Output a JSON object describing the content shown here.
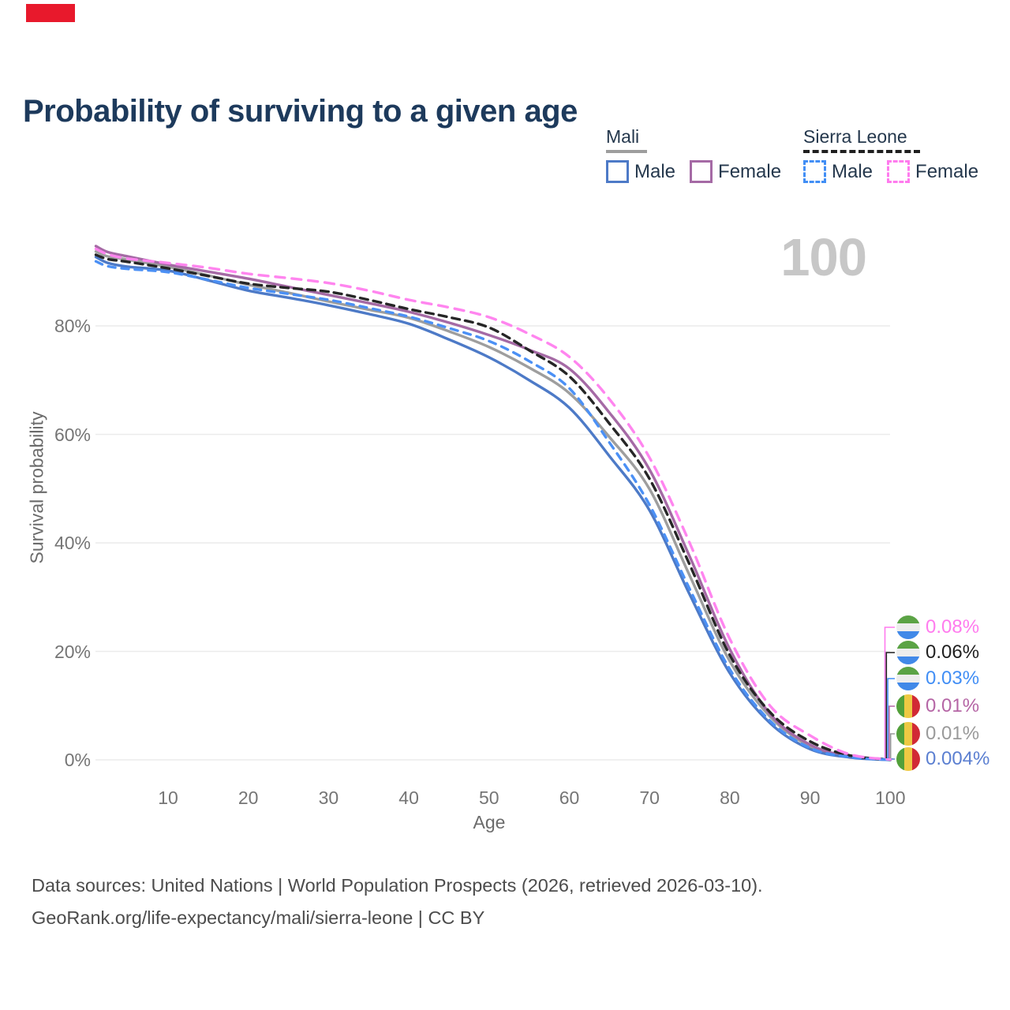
{
  "page": {
    "indicator_color": "#e8192c",
    "watermark": "100"
  },
  "title": "Probability of surviving to a given age",
  "legend": {
    "groups": [
      {
        "label": "Mali",
        "line_style": "solid",
        "line_color": "#9e9e9e",
        "items": [
          {
            "label": "Male",
            "color": "#4d7ac7",
            "dashed": false
          },
          {
            "label": "Female",
            "color": "#a56aa5",
            "dashed": false
          }
        ]
      },
      {
        "label": "Sierra Leone",
        "line_style": "dashed",
        "line_color": "#1f1f1f",
        "items": [
          {
            "label": "Male",
            "color": "#418ef5",
            "dashed": true
          },
          {
            "label": "Female",
            "color": "#ff7bee",
            "dashed": true
          }
        ]
      }
    ]
  },
  "chart_data": {
    "type": "line",
    "title": "Probability of surviving to a given age",
    "xlabel": "Age",
    "ylabel": "Survival probability",
    "x_ticks": [
      10,
      20,
      30,
      40,
      50,
      60,
      70,
      80,
      90,
      100
    ],
    "y_ticks": [
      "0%",
      "20%",
      "40%",
      "60%",
      "80%"
    ],
    "xlim": [
      1,
      100
    ],
    "ylim": [
      0,
      100
    ],
    "grid": true,
    "legend_position": "top-right",
    "ages": [
      1,
      2.5,
      5,
      10,
      15,
      20,
      25,
      30,
      35,
      40,
      45,
      50,
      55,
      60,
      65,
      70,
      75,
      80,
      85,
      90,
      95,
      100
    ],
    "series": [
      {
        "id": "sierra-leone-female",
        "name": "Sierra Leone Female",
        "flag": "sierra-leone",
        "color": "#ff85ef",
        "label_color": "#ff7bee",
        "dash": "12 9",
        "end_label": "0.08%",
        "values": [
          94.2,
          93.2,
          92.4,
          91.6,
          90.7,
          89.6,
          88.8,
          87.9,
          86.5,
          84.8,
          83.4,
          81.6,
          78.5,
          74.3,
          66.5,
          55.7,
          40.0,
          22.3,
          10.0,
          4.5,
          1.0,
          0.08
        ]
      },
      {
        "id": "sierra-leone-total",
        "name": "Sierra Leone",
        "flag": "sierra-leone",
        "color": "#262626",
        "label_color": "#1f1f1f",
        "dash": "10 7",
        "end_label": "0.06%",
        "values": [
          93.1,
          92.3,
          91.8,
          90.6,
          89.2,
          87.8,
          87.0,
          86.3,
          84.8,
          83.1,
          81.6,
          79.7,
          75.5,
          70.7,
          62.0,
          51.8,
          36.0,
          19.3,
          8.8,
          3.4,
          0.8,
          0.06
        ]
      },
      {
        "id": "sierra-leone-male",
        "name": "Sierra Leone Male",
        "flag": "sierra-leone",
        "color": "#4b90f5",
        "label_color": "#418ef5",
        "dash": "9 8",
        "end_label": "0.03%",
        "values": [
          91.9,
          91.0,
          90.5,
          89.9,
          88.5,
          87.0,
          85.9,
          84.8,
          83.3,
          81.7,
          79.6,
          77.2,
          73.5,
          68.5,
          58.5,
          47.0,
          31.5,
          16.7,
          7.2,
          2.2,
          0.5,
          0.03
        ]
      },
      {
        "id": "mali-female",
        "name": "Mali Female",
        "flag": "mali",
        "color": "#a56aa5",
        "label_color": "#b565a5",
        "dash": null,
        "end_label": "0.01%",
        "values": [
          94.7,
          93.6,
          92.8,
          91.3,
          90.0,
          88.7,
          87.2,
          85.7,
          84.2,
          82.6,
          80.6,
          78.3,
          75.6,
          72.1,
          64.0,
          53.5,
          37.5,
          20.4,
          8.5,
          2.8,
          0.6,
          0.01
        ]
      },
      {
        "id": "mali-total",
        "name": "Mali",
        "flag": "mali",
        "color": "#9e9e9e",
        "label_color": "#9a9a9a",
        "dash": null,
        "end_label": "0.01%",
        "values": [
          93.7,
          92.8,
          92.2,
          90.9,
          89.3,
          87.6,
          86.1,
          84.5,
          83.0,
          81.5,
          79.0,
          76.1,
          72.3,
          67.6,
          59.5,
          49.9,
          34.0,
          18.2,
          8.0,
          2.5,
          0.55,
          0.01
        ]
      },
      {
        "id": "mali-male",
        "name": "Mali Male",
        "flag": "mali",
        "color": "#4d7ac7",
        "label_color": "#5b7fd1",
        "dash": null,
        "end_label": "0.004%",
        "values": [
          92.7,
          91.6,
          90.9,
          90.2,
          88.4,
          86.5,
          85.2,
          83.8,
          82.2,
          80.4,
          77.5,
          74.2,
          70.0,
          64.9,
          56.0,
          46.0,
          30.5,
          16.0,
          6.8,
          2.0,
          0.45,
          0.004
        ]
      }
    ]
  },
  "footer": {
    "line1": "Data sources: United Nations | World Population Prospects (2026, retrieved 2026-03-10).",
    "line2": "GeoRank.org/life-expectancy/mali/sierra-leone | CC BY"
  }
}
